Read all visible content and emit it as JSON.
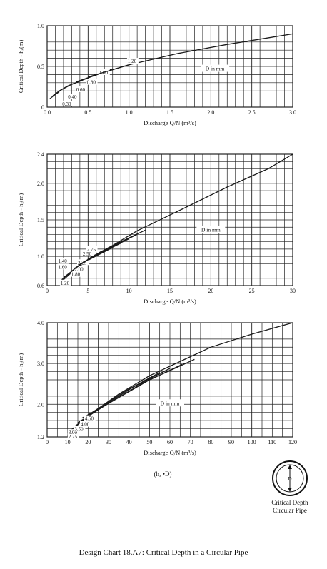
{
  "caption": "Design Chart 18.A7:  Critical Depth in a Circular Pipe",
  "colors": {
    "line": "#1a1a1a",
    "grid": "#222222",
    "background": "#ffffff"
  },
  "chart_data": [
    {
      "type": "line",
      "ylabel": "Critical Depth - hₓ(m)",
      "xlabel": "Discharge Q/N (m³/s)",
      "xlim": [
        0,
        3.0
      ],
      "ylim": [
        0,
        1.0
      ],
      "x_ticks": [
        "0.0",
        "0.5",
        "1.0",
        "1.5",
        "2.0",
        "2.5",
        "3.0"
      ],
      "y_ticks": [
        "0",
        "0.5",
        "1.0"
      ],
      "grid": true,
      "annotation": "D in mm",
      "series": [
        {
          "name": "0.30",
          "points": [
            [
              0.03,
              0.1
            ],
            [
              0.08,
              0.14
            ],
            [
              0.15,
              0.19
            ]
          ]
        },
        {
          "name": "0.40",
          "points": [
            [
              0.07,
              0.14
            ],
            [
              0.15,
              0.2
            ],
            [
              0.25,
              0.26
            ]
          ]
        },
        {
          "name": "0.60",
          "points": [
            [
              0.15,
              0.2
            ],
            [
              0.3,
              0.28
            ],
            [
              0.5,
              0.36
            ]
          ]
        },
        {
          "name": "0.80",
          "points": [
            [
              0.25,
              0.26
            ],
            [
              0.5,
              0.36
            ],
            [
              0.8,
              0.47
            ]
          ]
        },
        {
          "name": "1.00",
          "points": [
            [
              0.35,
              0.31
            ],
            [
              0.7,
              0.43
            ],
            [
              1.1,
              0.55
            ]
          ]
        },
        {
          "name": "1.20",
          "points": [
            [
              0.5,
              0.37
            ],
            [
              1.0,
              0.52
            ],
            [
              1.6,
              0.66
            ],
            [
              2.2,
              0.77
            ],
            [
              3.0,
              0.9
            ]
          ]
        }
      ]
    },
    {
      "type": "line",
      "ylabel": "Critical Depth - hₓ(m)",
      "xlabel": "Discharge Q/N (m³/s)",
      "xlim": [
        0,
        30
      ],
      "ylim": [
        0.6,
        2.4
      ],
      "x_ticks": [
        "0",
        "5",
        "10",
        "15",
        "20",
        "25",
        "30"
      ],
      "y_ticks": [
        "0.6",
        "1.0",
        "1.5",
        "2.0",
        "2.4"
      ],
      "grid": true,
      "annotation": "D in mm",
      "series": [
        {
          "name": "1.20",
          "points": [
            [
              1.6,
              0.64
            ],
            [
              3.0,
              0.78
            ],
            [
              5.0,
              0.95
            ],
            [
              8.0,
              1.15
            ],
            [
              11.0,
              1.35
            ],
            [
              16.0,
              1.62
            ],
            [
              22.0,
              1.95
            ],
            [
              27.0,
              2.2
            ],
            [
              30.0,
              2.4
            ]
          ]
        },
        {
          "name": "1.40",
          "points": [
            [
              1.8,
              0.68
            ],
            [
              3.5,
              0.84
            ],
            [
              6.0,
              1.02
            ]
          ]
        },
        {
          "name": "1.60",
          "points": [
            [
              2.0,
              0.71
            ],
            [
              4.0,
              0.88
            ],
            [
              7.0,
              1.08
            ]
          ]
        },
        {
          "name": "1.80",
          "points": [
            [
              2.3,
              0.73
            ],
            [
              4.5,
              0.92
            ],
            [
              8.0,
              1.12
            ]
          ]
        },
        {
          "name": "2.00",
          "points": [
            [
              2.6,
              0.76
            ],
            [
              5.0,
              0.96
            ],
            [
              9.0,
              1.18
            ]
          ]
        },
        {
          "name": "2.25",
          "points": [
            [
              3.0,
              0.8
            ],
            [
              5.5,
              1.0
            ],
            [
              10.0,
              1.24
            ]
          ]
        },
        {
          "name": "2.50",
          "points": [
            [
              3.4,
              0.84
            ],
            [
              6.5,
              1.06
            ],
            [
              11.0,
              1.3
            ]
          ]
        },
        {
          "name": "2.75",
          "points": [
            [
              3.8,
              0.88
            ],
            [
              7.5,
              1.12
            ],
            [
              12.0,
              1.36
            ]
          ]
        }
      ]
    },
    {
      "type": "line",
      "ylabel": "Critical Depth - hₓ(m)",
      "xlabel": "Discharge Q/N (m³/s)",
      "xlim": [
        0,
        120
      ],
      "ylim": [
        1.2,
        4.0
      ],
      "x_ticks": [
        "0",
        "10",
        "20",
        "30",
        "40",
        "50",
        "60",
        "70",
        "80",
        "90",
        "100",
        "110",
        "120"
      ],
      "y_ticks": [
        "1.2",
        "2.0",
        "3.0",
        "4.0"
      ],
      "grid": true,
      "annotation": "D in mm",
      "series": [
        {
          "name": "2.75",
          "points": [
            [
              10,
              1.28
            ],
            [
              20,
              1.72
            ],
            [
              35,
              2.25
            ],
            [
              50,
              2.7
            ],
            [
              65,
              3.05
            ],
            [
              80,
              3.4
            ],
            [
              100,
              3.72
            ],
            [
              120,
              4.0
            ]
          ]
        },
        {
          "name": "3.00",
          "points": [
            [
              11,
              1.34
            ],
            [
              22,
              1.8
            ],
            [
              38,
              2.32
            ],
            [
              55,
              2.78
            ]
          ]
        },
        {
          "name": "3.50",
          "points": [
            [
              13,
              1.44
            ],
            [
              25,
              1.88
            ],
            [
              42,
              2.42
            ],
            [
              60,
              2.88
            ]
          ]
        },
        {
          "name": "4.00",
          "points": [
            [
              15,
              1.55
            ],
            [
              28,
              1.96
            ],
            [
              46,
              2.5
            ],
            [
              66,
              2.98
            ]
          ]
        },
        {
          "name": "4.50",
          "points": [
            [
              17,
              1.66
            ],
            [
              31,
              2.05
            ],
            [
              50,
              2.6
            ],
            [
              72,
              3.1
            ]
          ]
        }
      ]
    }
  ],
  "inset": {
    "label_symbol": "D",
    "formula": "(hₓ •D)",
    "title_line1": "Critical Depth",
    "title_line2": "Circular Pipe"
  }
}
